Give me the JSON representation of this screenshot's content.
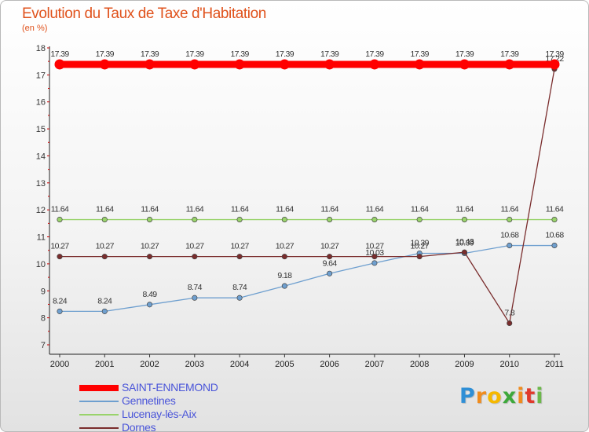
{
  "header": {
    "title": "Evolution du Taux de Taxe d'Habitation",
    "subtitle": "(en %)"
  },
  "logo": {
    "letters": [
      "P",
      "r",
      "o",
      "x",
      "i",
      "t",
      "i"
    ],
    "colors": [
      "#2f8fd6",
      "#f08c1e",
      "#f5b800",
      "#3da83b",
      "#f08c1e",
      "#e03a2c",
      "#6cb84a"
    ]
  },
  "chart_data": {
    "type": "line",
    "title": "Evolution du Taux de Taxe d'Habitation",
    "ylabel": "(en %)",
    "xlabel": "",
    "x": [
      "2000",
      "2001",
      "2002",
      "2003",
      "2004",
      "2005",
      "2006",
      "2007",
      "2008",
      "2009",
      "2010",
      "2011"
    ],
    "ylim": [
      7,
      18
    ],
    "yticks": [
      "7",
      "8",
      "9",
      "10",
      "11",
      "12",
      "13",
      "14",
      "15",
      "16",
      "17",
      "18"
    ],
    "grid": false,
    "legend_position": "bottom-left",
    "series": [
      {
        "name": "SAINT-ENNEMOND",
        "color": "#ff0000",
        "values": [
          17.39,
          17.39,
          17.39,
          17.39,
          17.39,
          17.39,
          17.39,
          17.39,
          17.39,
          17.39,
          17.39,
          17.39
        ],
        "labels": [
          "17.39",
          "17.39",
          "17.39",
          "17.39",
          "17.39",
          "17.39",
          "17.39",
          "17.39",
          "17.39",
          "17.39",
          "17.39",
          "17.39"
        ]
      },
      {
        "name": "Gennetines",
        "color": "#6e9fcf",
        "values": [
          8.24,
          8.24,
          8.49,
          8.74,
          8.74,
          9.18,
          9.64,
          10.03,
          10.39,
          10.39,
          10.68,
          10.68
        ],
        "labels": [
          "8.24",
          "8.24",
          "8.49",
          "8.74",
          "8.74",
          "9.18",
          "9.64",
          "10.03",
          "10.39",
          "10.39",
          "10.68",
          "10.68"
        ]
      },
      {
        "name": "Lucenay-lès-Aix",
        "color": "#99d36b",
        "values": [
          11.64,
          11.64,
          11.64,
          11.64,
          11.64,
          11.64,
          11.64,
          11.64,
          11.64,
          11.64,
          11.64,
          11.64
        ],
        "labels": [
          "11.64",
          "11.64",
          "11.64",
          "11.64",
          "11.64",
          "11.64",
          "11.64",
          "11.64",
          "11.64",
          "11.64",
          "11.64",
          "11.64"
        ]
      },
      {
        "name": "Dornes",
        "color": "#7a2d2d",
        "values": [
          10.27,
          10.27,
          10.27,
          10.27,
          10.27,
          10.27,
          10.27,
          10.27,
          10.27,
          10.43,
          7.8,
          17.22
        ],
        "labels": [
          "10.27",
          "10.27",
          "10.27",
          "10.27",
          "10.27",
          "10.27",
          "10.27",
          "10.27",
          "10.27",
          "10.43",
          "7.8",
          "17.22"
        ]
      }
    ]
  }
}
